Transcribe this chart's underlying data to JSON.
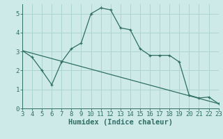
{
  "xlabel": "Humidex (Indice chaleur)",
  "xlim": [
    3,
    23
  ],
  "ylim": [
    0,
    5.5
  ],
  "xticks": [
    3,
    4,
    5,
    6,
    7,
    8,
    9,
    10,
    11,
    12,
    13,
    14,
    15,
    16,
    17,
    18,
    19,
    20,
    21,
    22,
    23
  ],
  "yticks": [
    0,
    1,
    2,
    3,
    4,
    5
  ],
  "bg_color": "#ceeae8",
  "line_color": "#2e6e65",
  "curve1_x": [
    3,
    4,
    5,
    6,
    7,
    8,
    9,
    10,
    11,
    12,
    13,
    14,
    15,
    16,
    17,
    18,
    19,
    20,
    21,
    22,
    23
  ],
  "curve1_y": [
    3.05,
    2.7,
    2.0,
    1.25,
    2.45,
    3.15,
    3.45,
    5.0,
    5.3,
    5.2,
    4.25,
    4.15,
    3.15,
    2.8,
    2.8,
    2.8,
    2.45,
    0.7,
    0.55,
    0.6,
    0.25
  ],
  "curve2_x": [
    3,
    23
  ],
  "curve2_y": [
    3.05,
    0.25
  ],
  "grid_color": "#aed4d0",
  "tick_fontsize": 6.5,
  "label_fontsize": 7.5
}
